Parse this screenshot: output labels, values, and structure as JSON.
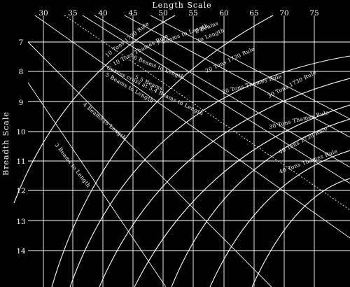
{
  "x_axis": {
    "title": "Length Scale",
    "tick_labels": [
      "30",
      "35",
      "40",
      "45",
      "50",
      "55",
      "60",
      "65",
      "70",
      "75"
    ]
  },
  "y_axis": {
    "title": "Breadth Scale",
    "tick_labels": [
      "7",
      "8",
      "9",
      "10",
      "11",
      "12",
      "13",
      "14"
    ]
  },
  "curve_labels": {
    "tons10_1730": "10 Tons 1730 Rule",
    "tons10_thames": "10 Tons Thames Rule",
    "tons20_1730": "20 Tons 1730 Rule",
    "tons20_thames": "20 Tons Thames Rule",
    "tons30_1730": "30 Tons 1730 Rule",
    "tons30_thames": "30 Tons Thames Rule",
    "tons40_1730": "40 Tons 1730 Rule",
    "tons40_thames": "40 Tons Thames Rule"
  },
  "ratio_labels": {
    "beams8_a": "8 Beams",
    "beams8_b": "to Length",
    "beams7": "7 Beams to Length",
    "beams6": "6 Beams to Length",
    "beams55": "5.5 Beams",
    "curves_cross": "Curves cross at 5.4 Beams to Length",
    "beams5": "5 Beams to Length",
    "beams4": "4 Beams to Length",
    "beams3": "3 Beams to Length"
  },
  "colors": {
    "background": "#000000",
    "ink": "#ffffff"
  }
}
